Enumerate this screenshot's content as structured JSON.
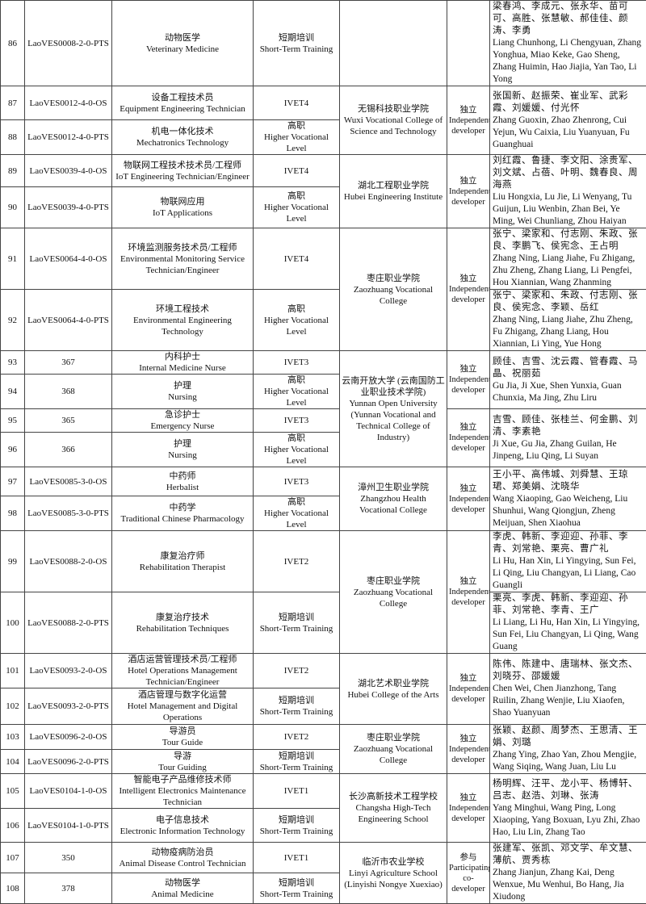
{
  "rows": [
    {
      "no": "86",
      "code": "LaoVES0008-2-0-PTS",
      "prog_zh": "动物医学",
      "prog_en": "Veterinary Medicine",
      "level_zh": "短期培训",
      "level_en": "Short-Term Training"
    },
    {
      "no": "87",
      "code": "LaoVES0012-4-0-OS",
      "prog_zh": "设备工程技术员",
      "prog_en": "Equipment Engineering Technician",
      "level_zh": "",
      "level_en": "IVET4"
    },
    {
      "no": "88",
      "code": "LaoVES0012-4-0-PTS",
      "prog_zh": "机电一体化技术",
      "prog_en": "Mechatronics Technology",
      "level_zh": "高职",
      "level_en": "Higher Vocational Level"
    },
    {
      "no": "89",
      "code": "LaoVES0039-4-0-OS",
      "prog_zh": "物联网工程技术技术员/工程师",
      "prog_en": "IoT Engineering Technician/Engineer",
      "level_zh": "",
      "level_en": "IVET4"
    },
    {
      "no": "90",
      "code": "LaoVES0039-4-0-PTS",
      "prog_zh": "物联网应用",
      "prog_en": "IoT Applications",
      "level_zh": "高职",
      "level_en": "Higher Vocational Level"
    },
    {
      "no": "91",
      "code": "LaoVES0064-4-0-OS",
      "prog_zh": "环境监测服务技术员/工程师",
      "prog_en": "Environmental Monitoring Service Technician/Engineer",
      "level_zh": "",
      "level_en": "IVET4"
    },
    {
      "no": "92",
      "code": "LaoVES0064-4-0-PTS",
      "prog_zh": "环境工程技术",
      "prog_en": "Environmental Engineering Technology",
      "level_zh": "高职",
      "level_en": "Higher Vocational Level"
    },
    {
      "no": "93",
      "code": "367",
      "prog_zh": "内科护士",
      "prog_en": "Internal Medicine Nurse",
      "level_zh": "",
      "level_en": "IVET3"
    },
    {
      "no": "94",
      "code": "368",
      "prog_zh": "护理",
      "prog_en": "Nursing",
      "level_zh": "高职",
      "level_en": "Higher Vocational Level"
    },
    {
      "no": "95",
      "code": "365",
      "prog_zh": "急诊护士",
      "prog_en": "Emergency Nurse",
      "level_zh": "",
      "level_en": "IVET3"
    },
    {
      "no": "96",
      "code": "366",
      "prog_zh": "护理",
      "prog_en": "Nursing",
      "level_zh": "高职",
      "level_en": "Higher Vocational Level"
    },
    {
      "no": "97",
      "code": "LaoVES0085-3-0-OS",
      "prog_zh": "中药师",
      "prog_en": "Herbalist",
      "level_zh": "",
      "level_en": "IVET3"
    },
    {
      "no": "98",
      "code": "LaoVES0085-3-0-PTS",
      "prog_zh": "中药学",
      "prog_en": "Traditional Chinese Pharmacology",
      "level_zh": "高职",
      "level_en": "Higher Vocational Level"
    },
    {
      "no": "99",
      "code": "LaoVES0088-2-0-OS",
      "prog_zh": "康复治疗师",
      "prog_en": "Rehabilitation Therapist",
      "level_zh": "",
      "level_en": "IVET2"
    },
    {
      "no": "100",
      "code": "LaoVES0088-2-0-PTS",
      "prog_zh": "康复治疗技术",
      "prog_en": "Rehabilitation Techniques",
      "level_zh": "短期培训",
      "level_en": "Short-Term Training"
    },
    {
      "no": "101",
      "code": "LaoVES0093-2-0-OS",
      "prog_zh": "酒店运营管理技术员/工程师",
      "prog_en": "Hotel Operations Management Technician/Engineer",
      "level_zh": "",
      "level_en": "IVET2"
    },
    {
      "no": "102",
      "code": "LaoVES0093-2-0-PTS",
      "prog_zh": "酒店管理与数字化运营",
      "prog_en": "Hotel Management and Digital Operations",
      "level_zh": "短期培训",
      "level_en": "Short-Term Training"
    },
    {
      "no": "103",
      "code": "LaoVES0096-2-0-OS",
      "prog_zh": "导游员",
      "prog_en": "Tour Guide",
      "level_zh": "",
      "level_en": "IVET2"
    },
    {
      "no": "104",
      "code": "LaoVES0096-2-0-PTS",
      "prog_zh": "导游",
      "prog_en": "Tour Guiding",
      "level_zh": "短期培训",
      "level_en": "Short-Term Training"
    },
    {
      "no": "105",
      "code": "LaoVES0104-1-0-OS",
      "prog_zh": "智能电子产品维修技术师",
      "prog_en": "Intelligent Electronics Maintenance Technician",
      "level_zh": "",
      "level_en": "IVET1"
    },
    {
      "no": "106",
      "code": "LaoVES0104-1-0-PTS",
      "prog_zh": "电子信息技术",
      "prog_en": "Electronic Information Technology",
      "level_zh": "短期培训",
      "level_en": "Short-Term Training"
    },
    {
      "no": "107",
      "code": "350",
      "prog_zh": "动物疫病防治员",
      "prog_en": "Animal Disease Control Technician",
      "level_zh": "",
      "level_en": "IVET1"
    },
    {
      "no": "108",
      "code": "378",
      "prog_zh": "动物医学",
      "prog_en": "Animal Medicine",
      "level_zh": "短期培训",
      "level_en": "Short-Term Training"
    }
  ],
  "institutions": [
    {
      "first": 0,
      "span": 1,
      "zh": "",
      "en": ""
    },
    {
      "first": 1,
      "span": 2,
      "zh": "无锡科技职业学院",
      "en": "Wuxi Vocational College of Science and Technology"
    },
    {
      "first": 3,
      "span": 2,
      "zh": "湖北工程职业学院",
      "en": "Hubei Engineering Institute"
    },
    {
      "first": 5,
      "span": 2,
      "zh": "枣庄职业学院",
      "en": "Zaozhuang Vocational College"
    },
    {
      "first": 7,
      "span": 4,
      "zh": "云南开放大学 (云南国防工业职业技术学院)",
      "en": "Yunnan Open University (Yunnan Vocational and Technical College of Industry)"
    },
    {
      "first": 11,
      "span": 2,
      "zh": "漳州卫生职业学院",
      "en": "Zhangzhou Health Vocational College"
    },
    {
      "first": 13,
      "span": 2,
      "zh": "枣庄职业学院",
      "en": "Zaozhuang Vocational College"
    },
    {
      "first": 15,
      "span": 2,
      "zh": "湖北艺术职业学院",
      "en": "Hubei College of the Arts"
    },
    {
      "first": 17,
      "span": 2,
      "zh": "枣庄职业学院",
      "en": "Zaozhuang Vocational College"
    },
    {
      "first": 19,
      "span": 2,
      "zh": "长沙高新技术工程学校",
      "en": "Changsha High-Tech Engineering School"
    },
    {
      "first": 21,
      "span": 2,
      "zh": "临沂市农业学校",
      "en": "Linyi Agriculture School (Linyishi Nongye Xuexiao)"
    }
  ],
  "roles": [
    {
      "first": 0,
      "span": 1,
      "zh": "",
      "en": ""
    },
    {
      "first": 1,
      "span": 2,
      "zh": "独立",
      "en": "Independent developer"
    },
    {
      "first": 3,
      "span": 2,
      "zh": "独立",
      "en": "Independent developer"
    },
    {
      "first": 5,
      "span": 2,
      "zh": "独立",
      "en": "Independent developer"
    },
    {
      "first": 7,
      "span": 2,
      "zh": "独立",
      "en": "Independent developer"
    },
    {
      "first": 9,
      "span": 2,
      "zh": "独立",
      "en": "Independent developer"
    },
    {
      "first": 11,
      "span": 2,
      "zh": "独立",
      "en": "Independent developer"
    },
    {
      "first": 13,
      "span": 2,
      "zh": "独立",
      "en": "Independent developer"
    },
    {
      "first": 15,
      "span": 2,
      "zh": "独立",
      "en": "Independent developer"
    },
    {
      "first": 17,
      "span": 2,
      "zh": "独立",
      "en": "Independent developer"
    },
    {
      "first": 19,
      "span": 2,
      "zh": "独立",
      "en": "Independent developer"
    },
    {
      "first": 21,
      "span": 2,
      "zh": "参与",
      "en": "Participating co-developer"
    }
  ],
  "developers": [
    {
      "first": 0,
      "span": 1,
      "zh": "梁春鸿、李成元、张永华、苗可可、高胜、张慧敏、郝佳佳、颜涛、李勇",
      "en": "Liang Chunhong, Li Chengyuan, Zhang Yonghua, Miao Keke, Gao Sheng, Zhang Huimin, Hao Jiajia, Yan Tao, Li Yong"
    },
    {
      "first": 1,
      "span": 2,
      "zh": "张国新、赵振荣、崔业军、武彩霞、刘媛媛、付光怀",
      "en": "Zhang Guoxin, Zhao Zhenrong, Cui Yejun, Wu Caixia, Liu Yuanyuan, Fu Guanghuai"
    },
    {
      "first": 3,
      "span": 2,
      "zh": "刘红霞、鲁捷、李文阳、涂贵军、刘文斌、占蓓、叶明、魏春良、周海燕",
      "en": "Liu Hongxia, Lu Jie, Li Wenyang, Tu Guijun, Liu Wenbin, Zhan Bei, Ye Ming, Wei Chunliang, Zhou Haiyan"
    },
    {
      "first": 5,
      "span": 1,
      "zh": "张宁、梁家和、付志刚、朱政、张良、李鹏飞、侯宪念、王占明",
      "en": "Zhang Ning, Liang Jiahe, Fu Zhigang, Zhu Zheng, Zhang Liang, Li Pengfei, Hou Xiannian, Wang Zhanming"
    },
    {
      "first": 6,
      "span": 1,
      "zh": "张宁、梁家和、朱政、付志刚、张良、侯宪念、李颖、岳红",
      "en": "Zhang Ning, Liang Jiahe, Zhu Zheng, Fu Zhigang, Zhang Liang, Hou Xiannian, Li Ying, Yue Hong"
    },
    {
      "first": 7,
      "span": 2,
      "zh": "顾佳、吉雪、沈云霞、管春霞、马晶、祝丽茹",
      "en": "Gu Jia, Ji Xue, Shen Yunxia, Guan Chunxia, Ma Jing, Zhu Liru"
    },
    {
      "first": 9,
      "span": 2,
      "zh": "吉雪、顾佳、张桂兰、何金鹏、刘清、李素艳",
      "en": "Ji Xue, Gu Jia, Zhang Guilan, He Jinpeng, Liu Qing, Li Suyan"
    },
    {
      "first": 11,
      "span": 2,
      "zh": "王小平、高伟城、刘舜慧、王琼珺、郑美娟、沈晓华",
      "en": "Wang Xiaoping, Gao Weicheng, Liu Shunhui, Wang Qiongjun, Zheng Meijuan, Shen Xiaohua"
    },
    {
      "first": 13,
      "span": 1,
      "zh": "李虎、韩新、李迎迎、孙菲、李青、刘常艳、栗亮、曹广礼",
      "en": "Li Hu, Han Xin, Li Yingying, Sun Fei, Li Qing, Liu Changyan, Li Liang, Cao Guangli"
    },
    {
      "first": 14,
      "span": 1,
      "zh": "栗亮、李虎、韩新、李迎迎、孙菲、刘常艳、李青、王广",
      "en": "Li Liang, Li Hu, Han Xin, Li Yingying, Sun Fei, Liu Changyan, Li Qing, Wang Guang"
    },
    {
      "first": 15,
      "span": 2,
      "zh": "陈伟、陈建中、唐瑞林、张文杰、刘晓芬、邵媛媛",
      "en": "Chen Wei, Chen Jianzhong, Tang Ruilin, Zhang Wenjie, Liu Xiaofen, Shao Yuanyuan"
    },
    {
      "first": 17,
      "span": 2,
      "zh": "张颖、赵颜、周梦杰、王思清、王娟、刘璐",
      "en": "Zhang Ying, Zhao Yan, Zhou Mengjie, Wang Siqing, Wang Juan, Liu Lu"
    },
    {
      "first": 19,
      "span": 2,
      "zh": "杨明辉、汪平、龙小平、杨博轩、吕志、赵浩、刘琳、张涛",
      "en": "Yang Minghui, Wang Ping, Long Xiaoping, Yang Boxuan, Lyu Zhi, Zhao Hao, Liu Lin, Zhang Tao"
    },
    {
      "first": 21,
      "span": 2,
      "zh": "张建军、张凯、邓文学、牟文慧、薄航、贾秀栋",
      "en": "Zhang Jianjun, Zhang Kai, Deng Wenxue, Mu Wenhui, Bo Hang, Jia Xiudong"
    }
  ]
}
